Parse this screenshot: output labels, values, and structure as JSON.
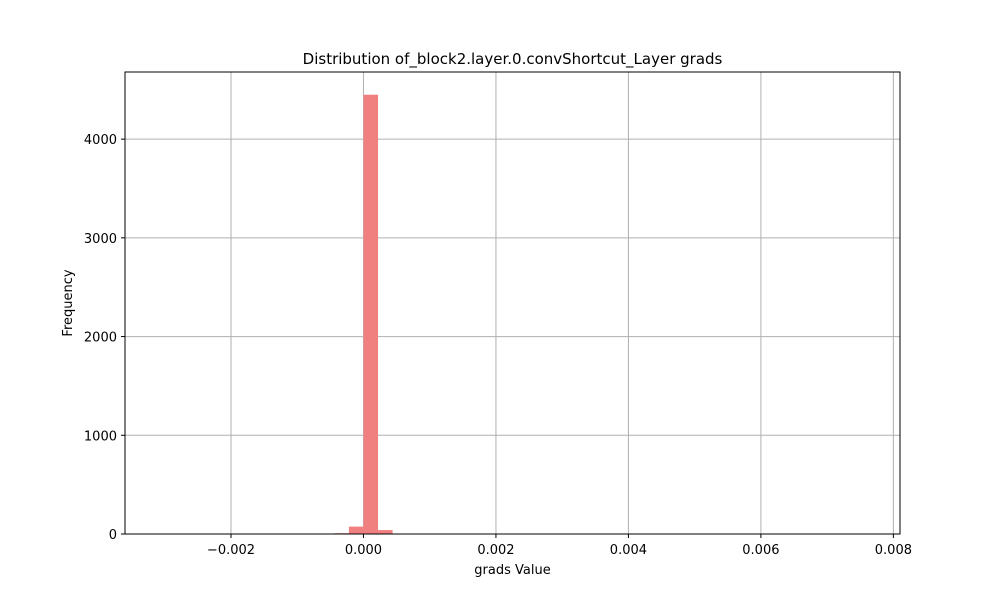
{
  "chart_data": {
    "type": "bar",
    "title": "Distribution of_block2.layer.0.convShortcut_Layer grads",
    "xlabel": "grads Value",
    "ylabel": "Frequency",
    "xlim": [
      -0.0036,
      0.0081
    ],
    "ylim": [
      0,
      4680
    ],
    "grid": true,
    "bar_color": "#f08080",
    "bin_width": 0.00022,
    "bins": [
      {
        "x0": -0.00044,
        "x1": -0.00022,
        "count": 8
      },
      {
        "x0": -0.00022,
        "x1": 0.0,
        "count": 75
      },
      {
        "x0": 0.0,
        "x1": 0.00022,
        "count": 4450
      },
      {
        "x0": 0.00022,
        "x1": 0.00044,
        "count": 40
      },
      {
        "x0": 0.00044,
        "x1": 0.00066,
        "count": 5
      }
    ],
    "x_ticks": [
      {
        "value": -0.002,
        "label": "−0.002"
      },
      {
        "value": 0.0,
        "label": "0.000"
      },
      {
        "value": 0.002,
        "label": "0.002"
      },
      {
        "value": 0.004,
        "label": "0.004"
      },
      {
        "value": 0.006,
        "label": "0.006"
      },
      {
        "value": 0.008,
        "label": "0.008"
      }
    ],
    "y_ticks": [
      {
        "value": 0,
        "label": "0"
      },
      {
        "value": 1000,
        "label": "1000"
      },
      {
        "value": 2000,
        "label": "2000"
      },
      {
        "value": 3000,
        "label": "3000"
      },
      {
        "value": 4000,
        "label": "4000"
      }
    ]
  }
}
